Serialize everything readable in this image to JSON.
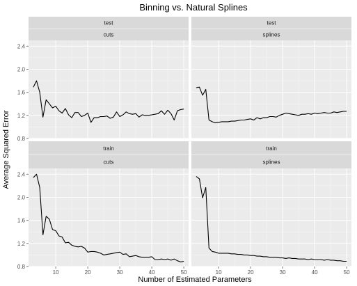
{
  "chart_data": {
    "type": "line",
    "title": "Binning vs. Natural Splines",
    "xlabel": "Number of Estimated Parameters",
    "ylabel": "Average Squared Error",
    "xlim": [
      1.5,
      51.5
    ],
    "x_ticks": [
      10,
      20,
      30,
      40,
      50
    ],
    "facet_rows": [
      "test",
      "train"
    ],
    "facet_cols": [
      "cuts",
      "splines"
    ],
    "grid": true,
    "panels": [
      {
        "row": "test",
        "col": "cuts",
        "ylim": [
          0.8,
          2.5
        ],
        "y_ticks": [
          0.8,
          1.2,
          1.6,
          2.0,
          2.4
        ],
        "x": [
          3,
          4,
          5,
          6,
          7,
          8,
          9,
          10,
          11,
          12,
          13,
          14,
          15,
          16,
          17,
          18,
          19,
          20,
          21,
          22,
          23,
          24,
          25,
          26,
          27,
          28,
          29,
          30,
          31,
          32,
          33,
          34,
          35,
          36,
          37,
          38,
          39,
          40,
          41,
          42,
          43,
          44,
          45,
          46,
          47,
          48,
          49,
          50
        ],
        "y": [
          1.69,
          1.8,
          1.6,
          1.17,
          1.47,
          1.4,
          1.33,
          1.36,
          1.28,
          1.24,
          1.32,
          1.21,
          1.16,
          1.25,
          1.25,
          1.18,
          1.2,
          1.24,
          1.08,
          1.16,
          1.16,
          1.18,
          1.18,
          1.19,
          1.15,
          1.17,
          1.26,
          1.18,
          1.21,
          1.26,
          1.23,
          1.22,
          1.23,
          1.17,
          1.21,
          1.2,
          1.2,
          1.21,
          1.22,
          1.23,
          1.28,
          1.22,
          1.29,
          1.23,
          1.12,
          1.28,
          1.3,
          1.31
        ]
      },
      {
        "row": "test",
        "col": "splines",
        "ylim": [
          0.8,
          2.5
        ],
        "y_ticks": [
          0.8,
          1.2,
          1.6,
          2.0,
          2.4
        ],
        "x": [
          3,
          4,
          5,
          6,
          7,
          8,
          9,
          10,
          11,
          12,
          13,
          14,
          15,
          16,
          17,
          18,
          19,
          20,
          21,
          22,
          23,
          24,
          25,
          26,
          27,
          28,
          29,
          30,
          31,
          32,
          33,
          34,
          35,
          36,
          37,
          38,
          39,
          40,
          41,
          42,
          43,
          44,
          45,
          46,
          47,
          48,
          49,
          50
        ],
        "y": [
          1.68,
          1.69,
          1.55,
          1.65,
          1.12,
          1.09,
          1.07,
          1.08,
          1.09,
          1.09,
          1.09,
          1.1,
          1.1,
          1.11,
          1.12,
          1.12,
          1.13,
          1.14,
          1.12,
          1.16,
          1.14,
          1.16,
          1.16,
          1.18,
          1.18,
          1.17,
          1.2,
          1.22,
          1.24,
          1.23,
          1.22,
          1.21,
          1.2,
          1.22,
          1.22,
          1.23,
          1.22,
          1.24,
          1.23,
          1.24,
          1.25,
          1.24,
          1.24,
          1.26,
          1.25,
          1.26,
          1.27,
          1.27
        ]
      },
      {
        "row": "train",
        "col": "cuts",
        "ylim": [
          0.8,
          2.5
        ],
        "y_ticks": [
          0.8,
          1.2,
          1.6,
          2.0,
          2.4
        ],
        "x": [
          3,
          4,
          5,
          6,
          7,
          8,
          9,
          10,
          11,
          12,
          13,
          14,
          15,
          16,
          17,
          18,
          19,
          20,
          21,
          22,
          23,
          24,
          25,
          26,
          27,
          28,
          29,
          30,
          31,
          32,
          33,
          34,
          35,
          36,
          37,
          38,
          39,
          40,
          41,
          42,
          43,
          44,
          45,
          46,
          47,
          48,
          49,
          50
        ],
        "y": [
          2.34,
          2.4,
          2.17,
          1.35,
          1.67,
          1.62,
          1.44,
          1.42,
          1.33,
          1.31,
          1.21,
          1.22,
          1.17,
          1.15,
          1.14,
          1.15,
          1.12,
          1.05,
          1.06,
          1.06,
          1.05,
          1.03,
          1.0,
          1.01,
          1.02,
          1.03,
          1.04,
          1.05,
          1.01,
          1.02,
          0.97,
          0.98,
          0.99,
          0.97,
          0.96,
          0.96,
          0.96,
          0.97,
          0.92,
          0.92,
          0.93,
          0.92,
          0.93,
          0.91,
          0.93,
          0.9,
          0.88,
          0.89
        ]
      },
      {
        "row": "train",
        "col": "splines",
        "ylim": [
          0.8,
          2.5
        ],
        "y_ticks": [
          0.8,
          1.2,
          1.6,
          2.0,
          2.4
        ],
        "x": [
          3,
          4,
          5,
          6,
          7,
          8,
          9,
          10,
          11,
          12,
          13,
          14,
          15,
          16,
          17,
          18,
          19,
          20,
          21,
          22,
          23,
          24,
          25,
          26,
          27,
          28,
          29,
          30,
          31,
          32,
          33,
          34,
          35,
          36,
          37,
          38,
          39,
          40,
          41,
          42,
          43,
          44,
          45,
          46,
          47,
          48,
          49,
          50
        ],
        "y": [
          2.36,
          2.32,
          1.99,
          2.17,
          1.12,
          1.06,
          1.05,
          1.03,
          1.03,
          1.03,
          1.03,
          1.02,
          1.02,
          1.01,
          1.01,
          1.0,
          1.0,
          0.99,
          0.99,
          0.98,
          0.98,
          0.97,
          0.97,
          0.96,
          0.96,
          0.96,
          0.95,
          0.95,
          0.94,
          0.95,
          0.94,
          0.94,
          0.93,
          0.93,
          0.93,
          0.92,
          0.93,
          0.92,
          0.92,
          0.92,
          0.91,
          0.92,
          0.91,
          0.91,
          0.9,
          0.9,
          0.89,
          0.89
        ]
      }
    ]
  }
}
